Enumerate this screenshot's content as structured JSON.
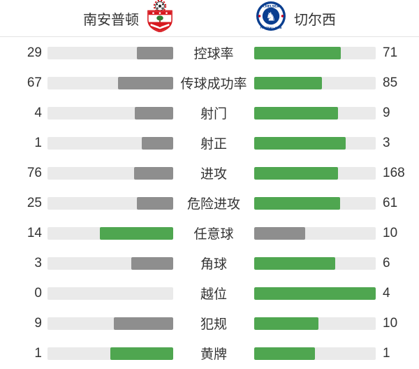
{
  "header": {
    "home": {
      "name": "南安普顿",
      "badge_icon": "southampton-crest"
    },
    "away": {
      "name": "切尔西",
      "badge_icon": "chelsea-crest"
    }
  },
  "theme": {
    "green": "#4fa650",
    "gray": "#8e8e8e",
    "track": "#eaeaea",
    "text": "#333333",
    "divider": "#e3e3e3",
    "southampton_red": "#d7191f",
    "chelsea_blue": "#0a3e8f"
  },
  "chart_data": {
    "type": "bar",
    "note": "paired comparison bars; home bar grows right-to-left, away bar grows left-to-right; higher value colored green, lower gray, equal both green; width = value/(home+away)",
    "categories": [
      "控球率",
      "传球成功率",
      "射门",
      "射正",
      "进攻",
      "危险进攻",
      "任意球",
      "角球",
      "越位",
      "犯规",
      "黄牌"
    ],
    "series": [
      {
        "name": "南安普顿",
        "values": [
          29,
          67,
          4,
          1,
          76,
          25,
          14,
          3,
          0,
          9,
          1
        ]
      },
      {
        "name": "切尔西",
        "values": [
          71,
          85,
          9,
          3,
          168,
          61,
          10,
          6,
          4,
          10,
          1
        ]
      }
    ]
  },
  "stats": {
    "rows": [
      {
        "label": "控球率",
        "home": 29,
        "away": 71
      },
      {
        "label": "传球成功率",
        "home": 67,
        "away": 85
      },
      {
        "label": "射门",
        "home": 4,
        "away": 9
      },
      {
        "label": "射正",
        "home": 1,
        "away": 3
      },
      {
        "label": "进攻",
        "home": 76,
        "away": 168
      },
      {
        "label": "危险进攻",
        "home": 25,
        "away": 61
      },
      {
        "label": "任意球",
        "home": 14,
        "away": 10
      },
      {
        "label": "角球",
        "home": 3,
        "away": 6
      },
      {
        "label": "越位",
        "home": 0,
        "away": 4
      },
      {
        "label": "犯规",
        "home": 9,
        "away": 10
      },
      {
        "label": "黄牌",
        "home": 1,
        "away": 1
      }
    ]
  }
}
